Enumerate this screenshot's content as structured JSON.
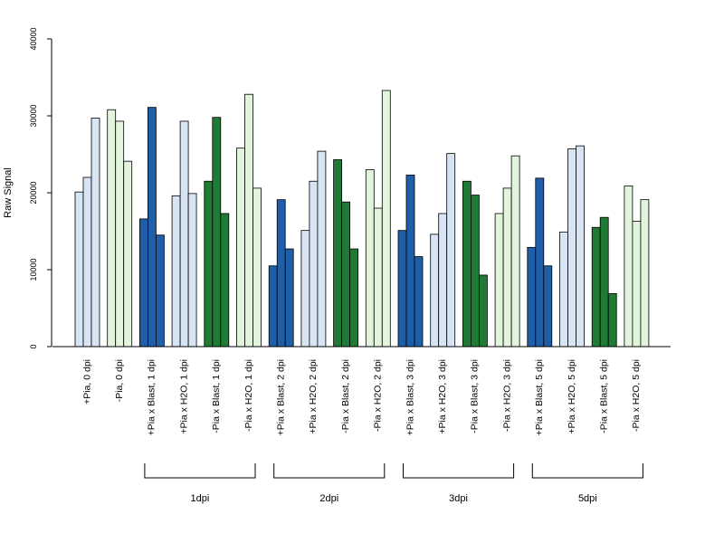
{
  "chart_data": {
    "type": "bar",
    "title": "",
    "xlabel": "",
    "ylabel": "Raw Signal",
    "ylim": [
      0,
      40000
    ],
    "yticks": [
      0,
      10000,
      20000,
      30000,
      40000
    ],
    "grid": false,
    "legend": "none",
    "categories": [
      "+Pia, 0 dpi",
      "-Pia, 0 dpi",
      "+Pia x Blast, 1 dpi",
      "+Pia x H2O, 1 dpi",
      "-Pia x Blast, 1 dpi",
      "-Pia x H2O, 1 dpi",
      "+Pia x Blast, 2 dpi",
      "+Pia x H2O, 2 dpi",
      "-Pia x Blast, 2 dpi",
      "-Pia x H2O, 2 dpi",
      "+Pia x Blast, 3 dpi",
      "+Pia x H2O, 3 dpi",
      "-Pia x Blast, 3 dpi",
      "-Pia x H2O, 3 dpi",
      "+Pia x Blast, 5 dpi",
      "+Pia x H2O, 5 dpi",
      "-Pia x Blast, 5 dpi",
      "-Pia x H2O, 5 dpi"
    ],
    "category_colors": [
      "#d6e4f4",
      "#e2f4dc",
      "#1f5ea8",
      "#d6e4f4",
      "#1f7a35",
      "#e2f4dc",
      "#1f5ea8",
      "#d6e4f4",
      "#1f7a35",
      "#e2f4dc",
      "#1f5ea8",
      "#d6e4f4",
      "#1f7a35",
      "#e2f4dc",
      "#1f5ea8",
      "#d6e4f4",
      "#1f7a35",
      "#e2f4dc"
    ],
    "replicate_values": [
      [
        20100,
        22000,
        29700
      ],
      [
        30800,
        29300,
        24100
      ],
      [
        16600,
        31100,
        14500
      ],
      [
        19600,
        29300,
        19900
      ],
      [
        21500,
        29800,
        17300
      ],
      [
        25800,
        32800,
        20600
      ],
      [
        10500,
        19100,
        12700
      ],
      [
        15100,
        21500,
        25400
      ],
      [
        24300,
        18800,
        12700
      ],
      [
        23000,
        18000,
        33300
      ],
      [
        15100,
        22300,
        11700
      ],
      [
        14600,
        17300,
        25100
      ],
      [
        21500,
        19700,
        9300
      ],
      [
        17300,
        20600,
        24800
      ],
      [
        12900,
        21900,
        10500
      ],
      [
        14900,
        25700,
        26100
      ],
      [
        15500,
        16800,
        6900
      ],
      [
        20900,
        16300,
        19100
      ]
    ],
    "groups": [
      {
        "label": "1dpi",
        "from": 2,
        "to": 5
      },
      {
        "label": "2dpi",
        "from": 6,
        "to": 9
      },
      {
        "label": "3dpi",
        "from": 10,
        "to": 13
      },
      {
        "label": "5dpi",
        "from": 14,
        "to": 17
      }
    ],
    "bar_border_color": "#000000"
  }
}
